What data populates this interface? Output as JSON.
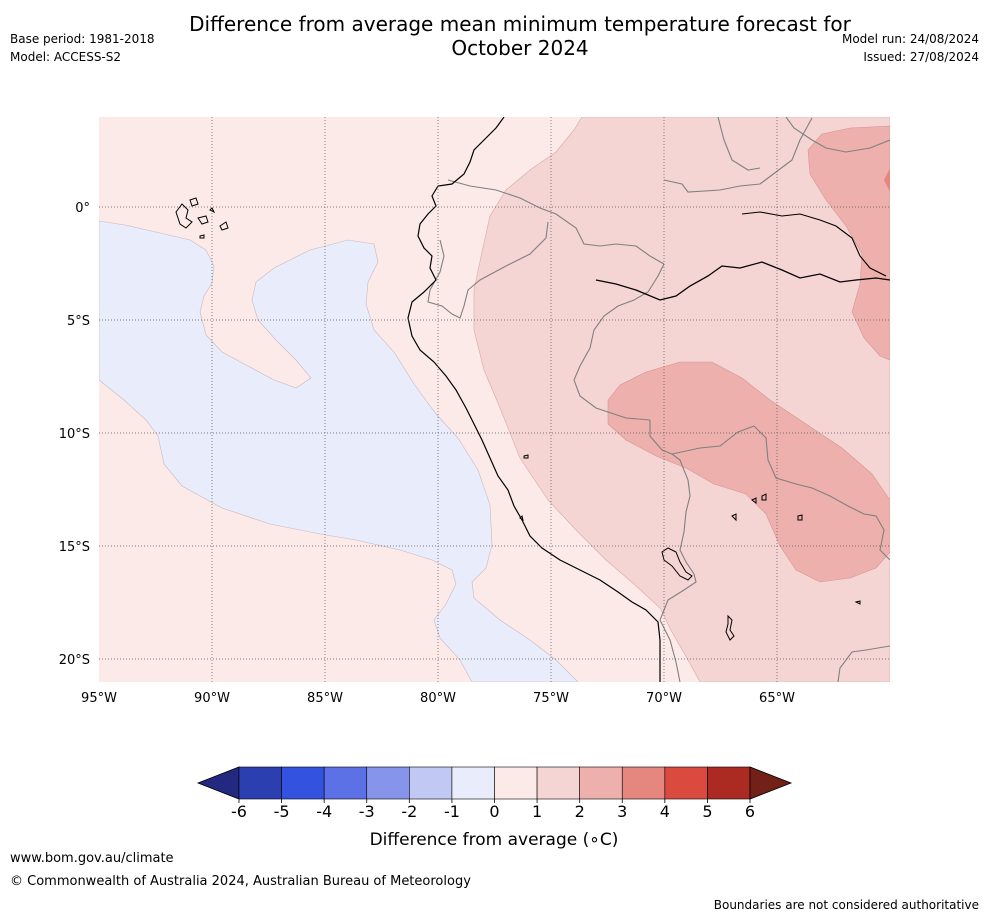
{
  "title": {
    "line1": "Difference from average mean minimum temperature forecast for",
    "line2": "October 2024"
  },
  "meta": {
    "base_period": "Base period: 1981-2018",
    "model": "Model: ACCESS-S2",
    "model_run": "Model run: 24/08/2024",
    "issued": "Issued: 27/08/2024"
  },
  "map": {
    "region": "South America west coast and Eastern Pacific",
    "longitude_labels": [
      "95°W",
      "90°W",
      "85°W",
      "80°W",
      "75°W",
      "70°W",
      "65°W"
    ],
    "latitude_labels": [
      "0°",
      "5°S",
      "10°S",
      "15°S",
      "20°S"
    ],
    "colors": {
      "ocean_neutral_positive": "#fbeae8",
      "negative_anomaly": "#e8ecfb",
      "land_positive_1_2": "#f5d5d3",
      "land_positive_2_3": "#edb0ad",
      "coast": "#000000",
      "borders": "#808080",
      "grid": "#777777"
    }
  },
  "colorbar": {
    "tick_labels": [
      "-6",
      "-5",
      "-4",
      "-3",
      "-2",
      "-1",
      "0",
      "1",
      "2",
      "3",
      "4",
      "5",
      "6"
    ],
    "label": "Difference from average (∘C)",
    "colors": [
      "#23297f",
      "#2b3fb0",
      "#3452e0",
      "#5c71e6",
      "#8695eb",
      "#c2c8f4",
      "#e8ecfb",
      "#fbeae8",
      "#f5d5d3",
      "#edb0ad",
      "#e5867f",
      "#da4a3f",
      "#ab2a22",
      "#732018"
    ]
  },
  "footer": {
    "website": "www.bom.gov.au/climate",
    "copyright": "© Commonwealth of Australia 2024, Australian Bureau of Meteorology",
    "note": "Boundaries are not considered authoritative"
  }
}
